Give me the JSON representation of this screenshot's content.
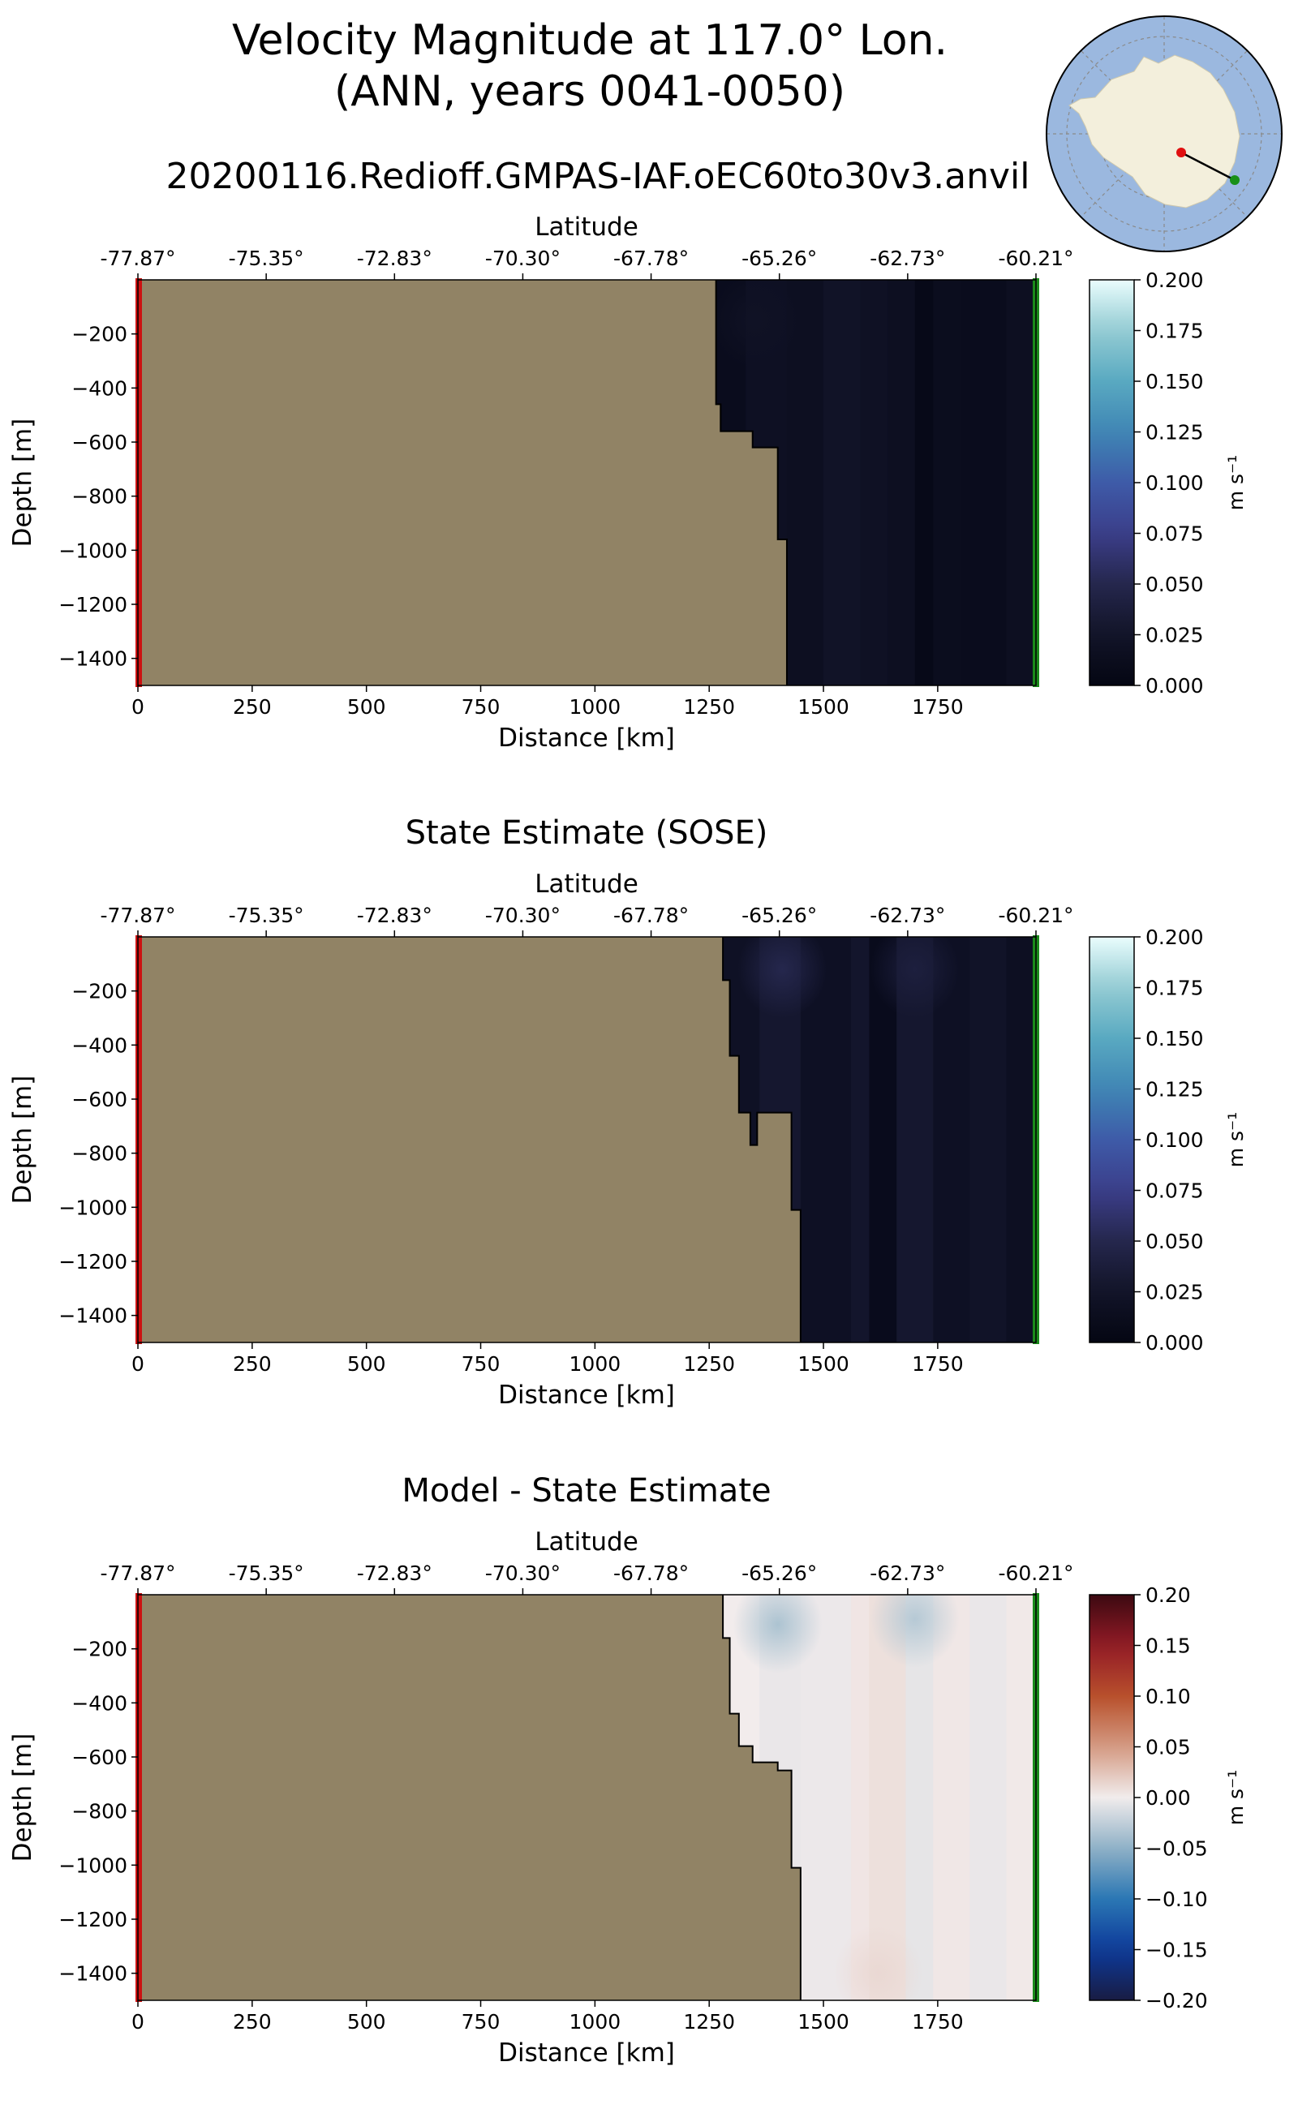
{
  "figure": {
    "title_line1": "Velocity Magnitude at 117.0° Lon.",
    "title_line2": "(ANN, years 0041-0050)",
    "run_name": "20200116.Redioff.GMPAS-IAF.oEC60to30v3.anvil"
  },
  "chart_data": [
    {
      "type": "heatmap",
      "title": "",
      "xlabel": "Distance [km]",
      "ylabel": "Depth [m]",
      "top_axis_label": "Latitude",
      "x_ticks": [
        0,
        250,
        500,
        750,
        1000,
        1250,
        1500,
        1750
      ],
      "x_tick_labels": [
        "0",
        "250",
        "500",
        "750",
        "1000",
        "1250",
        "1500",
        "1750"
      ],
      "xlim": [
        0,
        1965
      ],
      "lat_ticks": [
        "-77.87°",
        "-75.35°",
        "-72.83°",
        "-70.30°",
        "-67.78°",
        "-65.26°",
        "-62.73°",
        "-60.21°"
      ],
      "y_ticks": [
        -200,
        -400,
        -600,
        -800,
        -1000,
        -1200,
        -1400
      ],
      "y_tick_labels": [
        "−200",
        "−400",
        "−600",
        "−800",
        "−1000",
        "−1200",
        "−1400"
      ],
      "ylim": [
        -1500,
        0
      ],
      "colorbar_label": "m s⁻¹",
      "colormap": "ice",
      "colorbar_ticks": [
        0.0,
        0.025,
        0.05,
        0.075,
        0.1,
        0.125,
        0.15,
        0.175,
        0.2
      ],
      "colorbar_tick_labels": [
        "0.000",
        "0.025",
        "0.050",
        "0.075",
        "0.100",
        "0.125",
        "0.150",
        "0.175",
        "0.200"
      ],
      "vmin": 0.0,
      "vmax": 0.2,
      "land_boundary": [
        [
          1265,
          0
        ],
        [
          1265,
          -460
        ],
        [
          1275,
          -460
        ],
        [
          1275,
          -560
        ],
        [
          1345,
          -560
        ],
        [
          1345,
          -620
        ],
        [
          1400,
          -620
        ],
        [
          1400,
          -960
        ],
        [
          1420,
          -960
        ],
        [
          1420,
          -1500
        ]
      ],
      "columns": [
        {
          "x": [
            1265,
            1330
          ],
          "v": 0.012
        },
        {
          "x": [
            1330,
            1420
          ],
          "v": 0.02
        },
        {
          "x": [
            1420,
            1500
          ],
          "v": 0.018
        },
        {
          "x": [
            1500,
            1580
          ],
          "v": 0.025
        },
        {
          "x": [
            1580,
            1640
          ],
          "v": 0.022
        },
        {
          "x": [
            1640,
            1700
          ],
          "v": 0.018
        },
        {
          "x": [
            1700,
            1740
          ],
          "v": 0.006
        },
        {
          "x": [
            1740,
            1800
          ],
          "v": 0.014
        },
        {
          "x": [
            1800,
            1900
          ],
          "v": 0.012
        },
        {
          "x": [
            1900,
            1965
          ],
          "v": 0.018
        }
      ],
      "blobs": [
        {
          "x": 1350,
          "y": -150,
          "v": 0.022
        }
      ]
    },
    {
      "type": "heatmap",
      "title": "State Estimate (SOSE)",
      "xlabel": "Distance [km]",
      "ylabel": "Depth [m]",
      "top_axis_label": "Latitude",
      "x_ticks": [
        0,
        250,
        500,
        750,
        1000,
        1250,
        1500,
        1750
      ],
      "x_tick_labels": [
        "0",
        "250",
        "500",
        "750",
        "1000",
        "1250",
        "1500",
        "1750"
      ],
      "xlim": [
        0,
        1965
      ],
      "lat_ticks": [
        "-77.87°",
        "-75.35°",
        "-72.83°",
        "-70.30°",
        "-67.78°",
        "-65.26°",
        "-62.73°",
        "-60.21°"
      ],
      "y_ticks": [
        -200,
        -400,
        -600,
        -800,
        -1000,
        -1200,
        -1400
      ],
      "y_tick_labels": [
        "−200",
        "−400",
        "−600",
        "−800",
        "−1000",
        "−1200",
        "−1400"
      ],
      "ylim": [
        -1500,
        0
      ],
      "colorbar_label": "m s⁻¹",
      "colormap": "ice",
      "colorbar_ticks": [
        0.0,
        0.025,
        0.05,
        0.075,
        0.1,
        0.125,
        0.15,
        0.175,
        0.2
      ],
      "colorbar_tick_labels": [
        "0.000",
        "0.025",
        "0.050",
        "0.075",
        "0.100",
        "0.125",
        "0.150",
        "0.175",
        "0.200"
      ],
      "vmin": 0.0,
      "vmax": 0.2,
      "land_boundary": [
        [
          1280,
          0
        ],
        [
          1280,
          -160
        ],
        [
          1295,
          -160
        ],
        [
          1295,
          -440
        ],
        [
          1315,
          -440
        ],
        [
          1315,
          -650
        ],
        [
          1340,
          -650
        ],
        [
          1340,
          -770
        ],
        [
          1355,
          -770
        ],
        [
          1355,
          -650
        ],
        [
          1430,
          -650
        ],
        [
          1430,
          -1010
        ],
        [
          1450,
          -1010
        ],
        [
          1450,
          -1500
        ]
      ],
      "columns": [
        {
          "x": [
            1280,
            1360
          ],
          "v": 0.022
        },
        {
          "x": [
            1360,
            1450
          ],
          "v": 0.03
        },
        {
          "x": [
            1450,
            1560
          ],
          "v": 0.02
        },
        {
          "x": [
            1560,
            1600
          ],
          "v": 0.028
        },
        {
          "x": [
            1600,
            1660
          ],
          "v": 0.01
        },
        {
          "x": [
            1660,
            1740
          ],
          "v": 0.03
        },
        {
          "x": [
            1740,
            1820
          ],
          "v": 0.02
        },
        {
          "x": [
            1820,
            1900
          ],
          "v": 0.025
        },
        {
          "x": [
            1900,
            1965
          ],
          "v": 0.018
        }
      ],
      "blobs": [
        {
          "x": 1410,
          "y": -120,
          "v": 0.05
        },
        {
          "x": 1700,
          "y": -120,
          "v": 0.04
        }
      ]
    },
    {
      "type": "heatmap",
      "title": "Model - State Estimate",
      "xlabel": "Distance [km]",
      "ylabel": "Depth [m]",
      "top_axis_label": "Latitude",
      "x_ticks": [
        0,
        250,
        500,
        750,
        1000,
        1250,
        1500,
        1750
      ],
      "x_tick_labels": [
        "0",
        "250",
        "500",
        "750",
        "1000",
        "1250",
        "1500",
        "1750"
      ],
      "xlim": [
        0,
        1965
      ],
      "lat_ticks": [
        "-77.87°",
        "-75.35°",
        "-72.83°",
        "-70.30°",
        "-67.78°",
        "-65.26°",
        "-62.73°",
        "-60.21°"
      ],
      "y_ticks": [
        -200,
        -400,
        -600,
        -800,
        -1000,
        -1200,
        -1400
      ],
      "y_tick_labels": [
        "−200",
        "−400",
        "−600",
        "−800",
        "−1000",
        "−1200",
        "−1400"
      ],
      "ylim": [
        -1500,
        0
      ],
      "colorbar_label": "m s⁻¹",
      "colormap": "balance",
      "colorbar_ticks": [
        -0.2,
        -0.15,
        -0.1,
        -0.05,
        0.0,
        0.05,
        0.1,
        0.15,
        0.2
      ],
      "colorbar_tick_labels": [
        "−0.20",
        "−0.15",
        "−0.10",
        "−0.05",
        "0.00",
        "0.05",
        "0.10",
        "0.15",
        "0.20"
      ],
      "vmin": -0.2,
      "vmax": 0.2,
      "land_boundary": [
        [
          1280,
          0
        ],
        [
          1280,
          -160
        ],
        [
          1295,
          -160
        ],
        [
          1295,
          -440
        ],
        [
          1315,
          -440
        ],
        [
          1315,
          -560
        ],
        [
          1345,
          -560
        ],
        [
          1345,
          -620
        ],
        [
          1400,
          -620
        ],
        [
          1400,
          -650
        ],
        [
          1430,
          -650
        ],
        [
          1430,
          -1010
        ],
        [
          1450,
          -1010
        ],
        [
          1450,
          -1500
        ]
      ],
      "columns": [
        {
          "x": [
            1280,
            1360
          ],
          "v": 0.0
        },
        {
          "x": [
            1360,
            1450
          ],
          "v": -0.004
        },
        {
          "x": [
            1450,
            1560
          ],
          "v": -0.003
        },
        {
          "x": [
            1560,
            1600
          ],
          "v": 0.004
        },
        {
          "x": [
            1600,
            1680
          ],
          "v": 0.008
        },
        {
          "x": [
            1680,
            1740
          ],
          "v": -0.006
        },
        {
          "x": [
            1740,
            1820
          ],
          "v": 0.003
        },
        {
          "x": [
            1820,
            1900
          ],
          "v": -0.004
        },
        {
          "x": [
            1900,
            1965
          ],
          "v": 0.002
        }
      ],
      "blobs": [
        {
          "x": 1400,
          "y": -110,
          "v": -0.035
        },
        {
          "x": 1700,
          "y": -90,
          "v": -0.03
        },
        {
          "x": 1620,
          "y": -1400,
          "v": 0.012
        }
      ]
    }
  ],
  "inset_map": {
    "description": "Antarctic polar projection with transect",
    "ocean_color": "#9bb8df",
    "land_color": "#f3efdc",
    "start_marker_color": "#e01010",
    "end_marker_color": "#189018"
  },
  "colors": {
    "land": "#918365",
    "start_edge": "#cc1111",
    "end_edge": "#1a8a1a"
  }
}
